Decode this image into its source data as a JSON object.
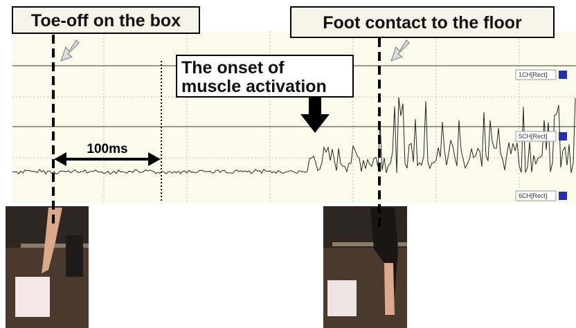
{
  "labels": {
    "toe_off": "Toe-off on the box",
    "foot_contact": "Foot contact to the floor",
    "onset": [
      "The onset of",
      "muscle activation"
    ],
    "interval": "100ms"
  },
  "channels": [
    "1CH[Rect]",
    "5CH[Rect]",
    "6CH[Rect]"
  ]
}
